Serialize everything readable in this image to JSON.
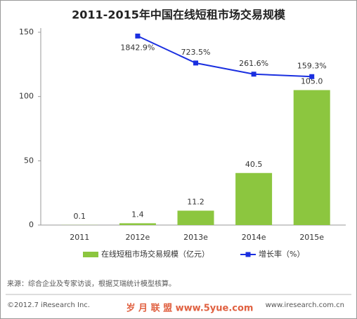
{
  "chart_data": {
    "type": "bar-line",
    "title": "2011-2015年中国在线短租市场交易规模",
    "categories": [
      "2011",
      "2012e",
      "2013e",
      "2014e",
      "2015e"
    ],
    "series": [
      {
        "name": "在线短租市场交易规模（亿元）",
        "type": "bar",
        "color": "#8cc63f",
        "values": [
          0.1,
          1.4,
          11.2,
          40.5,
          105.0
        ],
        "value_labels": [
          "0.1",
          "1.4",
          "11.2",
          "40.5",
          "105.0"
        ]
      },
      {
        "name": "增长率（%）",
        "type": "line",
        "axis": "y2",
        "color": "#1a2fe0",
        "values": [
          null,
          1842.9,
          723.5,
          261.6,
          159.3
        ],
        "value_labels": [
          null,
          "1842.9%",
          "723.5%",
          "261.6%",
          "159.3%"
        ]
      }
    ],
    "ylim": [
      0,
      150
    ],
    "yticks": [
      0,
      50,
      100,
      150
    ],
    "y2lim": [
      -6000,
      2000
    ],
    "grid": false,
    "source": "来源：综合企业及专家访谈，根据艾瑞统计模型核算。",
    "copyright": "©2012.7 iResearch Inc.",
    "website": "www.iresearch.com.cn",
    "watermark": "岁 月 联 盟   www.5yue.com"
  }
}
